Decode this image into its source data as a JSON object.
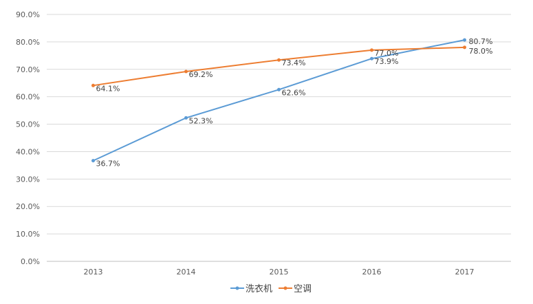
{
  "chart_data": {
    "type": "line",
    "x": [
      "2013",
      "2014",
      "2015",
      "2016",
      "2017"
    ],
    "series": [
      {
        "name": "洗衣机",
        "values": [
          36.7,
          52.3,
          62.6,
          73.9,
          80.7
        ],
        "labels": [
          "36.7%",
          "52.3%",
          "62.6%",
          "73.9%",
          "80.7%"
        ],
        "color": "#5b9bd5"
      },
      {
        "name": "空调",
        "values": [
          64.1,
          69.2,
          73.4,
          77.0,
          78.0
        ],
        "labels": [
          "64.1%",
          "69.2%",
          "73.4%",
          "77.0%",
          "78.0%"
        ],
        "color": "#ed7d31"
      }
    ],
    "yticks": [
      "0.0%",
      "10.0%",
      "20.0%",
      "30.0%",
      "40.0%",
      "50.0%",
      "60.0%",
      "70.0%",
      "80.0%",
      "90.0%"
    ],
    "ylim": [
      0,
      90
    ],
    "grid": true,
    "legend": "bottom"
  }
}
